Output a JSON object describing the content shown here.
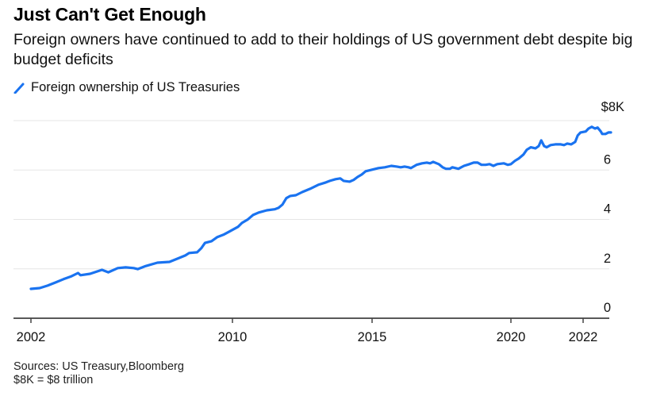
{
  "header": {
    "title": "Just Can't Get Enough",
    "subtitle": "Foreign owners have continued to add to their holdings of US government debt despite big budget deficits"
  },
  "legend": {
    "label": "Foreign ownership of US Treasuries",
    "color": "#1a73f0"
  },
  "footer": {
    "sources": "Sources: US Treasury,Bloomberg",
    "note": "$8K = $8 trillion"
  },
  "chart_data": {
    "type": "line",
    "title": "Just Can't Get Enough",
    "xlabel": "",
    "ylabel": "",
    "ylim": [
      0,
      8
    ],
    "y_ticks": [
      {
        "value": 8,
        "label": "$8K"
      },
      {
        "value": 6,
        "label": "6"
      },
      {
        "value": 4,
        "label": "4"
      },
      {
        "value": 2,
        "label": "2"
      },
      {
        "value": 0,
        "label": "0"
      }
    ],
    "x_ticks": [
      {
        "value": 2002,
        "label": "2002"
      },
      {
        "value": 2010,
        "label": "2010"
      },
      {
        "value": 2015,
        "label": "2015"
      },
      {
        "value": 2020,
        "label": "2020"
      },
      {
        "value": 2022,
        "label": "2022"
      }
    ],
    "grid": true,
    "legend_position": "top-left",
    "units": "$ billions (thousands shown as K)",
    "series": [
      {
        "name": "Foreign ownership of US Treasuries",
        "color": "#1a73f0",
        "points": [
          [
            2002.0,
            1.19
          ],
          [
            2002.35,
            1.22
          ],
          [
            2002.66,
            1.32
          ],
          [
            2002.98,
            1.45
          ],
          [
            2003.29,
            1.58
          ],
          [
            2003.61,
            1.7
          ],
          [
            2003.87,
            1.83
          ],
          [
            2003.97,
            1.74
          ],
          [
            2004.35,
            1.8
          ],
          [
            2004.82,
            1.96
          ],
          [
            2005.07,
            1.86
          ],
          [
            2005.45,
            2.03
          ],
          [
            2005.76,
            2.06
          ],
          [
            2006.08,
            2.03
          ],
          [
            2006.24,
            1.99
          ],
          [
            2006.55,
            2.11
          ],
          [
            2007.02,
            2.25
          ],
          [
            2007.5,
            2.28
          ],
          [
            2007.81,
            2.41
          ],
          [
            2008.13,
            2.54
          ],
          [
            2008.28,
            2.64
          ],
          [
            2008.6,
            2.67
          ],
          [
            2008.76,
            2.83
          ],
          [
            2008.91,
            3.05
          ],
          [
            2009.17,
            3.12
          ],
          [
            2009.39,
            3.28
          ],
          [
            2009.64,
            3.38
          ],
          [
            2009.86,
            3.5
          ],
          [
            2010.2,
            3.7
          ],
          [
            2010.34,
            3.86
          ],
          [
            2010.54,
            3.99
          ],
          [
            2010.74,
            4.18
          ],
          [
            2010.94,
            4.28
          ],
          [
            2011.23,
            4.37
          ],
          [
            2011.51,
            4.41
          ],
          [
            2011.65,
            4.47
          ],
          [
            2011.79,
            4.6
          ],
          [
            2011.93,
            4.86
          ],
          [
            2012.07,
            4.95
          ],
          [
            2012.27,
            4.98
          ],
          [
            2012.5,
            5.11
          ],
          [
            2012.78,
            5.24
          ],
          [
            2013.07,
            5.4
          ],
          [
            2013.35,
            5.5
          ],
          [
            2013.49,
            5.56
          ],
          [
            2013.69,
            5.63
          ],
          [
            2013.86,
            5.66
          ],
          [
            2013.98,
            5.56
          ],
          [
            2014.2,
            5.53
          ],
          [
            2014.34,
            5.6
          ],
          [
            2014.48,
            5.72
          ],
          [
            2014.63,
            5.82
          ],
          [
            2014.77,
            5.95
          ],
          [
            2015.03,
            6.02
          ],
          [
            2015.23,
            6.08
          ],
          [
            2015.46,
            6.11
          ],
          [
            2015.69,
            6.17
          ],
          [
            2015.89,
            6.14
          ],
          [
            2016.03,
            6.11
          ],
          [
            2016.17,
            6.14
          ],
          [
            2016.31,
            6.11
          ],
          [
            2016.4,
            6.08
          ],
          [
            2016.6,
            6.21
          ],
          [
            2016.8,
            6.27
          ],
          [
            2016.97,
            6.3
          ],
          [
            2017.09,
            6.27
          ],
          [
            2017.2,
            6.33
          ],
          [
            2017.4,
            6.24
          ],
          [
            2017.54,
            6.11
          ],
          [
            2017.66,
            6.05
          ],
          [
            2017.8,
            6.05
          ],
          [
            2017.89,
            6.11
          ],
          [
            2018.11,
            6.05
          ],
          [
            2018.31,
            6.17
          ],
          [
            2018.51,
            6.24
          ],
          [
            2018.66,
            6.3
          ],
          [
            2018.8,
            6.3
          ],
          [
            2018.94,
            6.21
          ],
          [
            2019.09,
            6.21
          ],
          [
            2019.23,
            6.24
          ],
          [
            2019.37,
            6.17
          ],
          [
            2019.51,
            6.24
          ],
          [
            2019.74,
            6.27
          ],
          [
            2019.89,
            6.21
          ],
          [
            2020.0,
            6.24
          ],
          [
            2020.11,
            6.37
          ],
          [
            2020.22,
            6.47
          ],
          [
            2020.35,
            6.63
          ],
          [
            2020.44,
            6.82
          ],
          [
            2020.55,
            6.92
          ],
          [
            2020.68,
            6.88
          ],
          [
            2020.77,
            6.97
          ],
          [
            2020.84,
            7.2
          ],
          [
            2020.92,
            6.97
          ],
          [
            2020.99,
            6.92
          ],
          [
            2021.1,
            7.01
          ],
          [
            2021.23,
            7.04
          ],
          [
            2021.38,
            7.04
          ],
          [
            2021.47,
            7.01
          ],
          [
            2021.56,
            7.07
          ],
          [
            2021.67,
            7.04
          ],
          [
            2021.78,
            7.14
          ],
          [
            2021.85,
            7.4
          ],
          [
            2021.93,
            7.52
          ],
          [
            2022.07,
            7.56
          ],
          [
            2022.15,
            7.68
          ],
          [
            2022.24,
            7.75
          ],
          [
            2022.33,
            7.68
          ],
          [
            2022.4,
            7.72
          ],
          [
            2022.49,
            7.56
          ],
          [
            2022.53,
            7.46
          ],
          [
            2022.62,
            7.46
          ],
          [
            2022.7,
            7.52
          ],
          [
            2022.77,
            7.52
          ]
        ]
      }
    ]
  }
}
